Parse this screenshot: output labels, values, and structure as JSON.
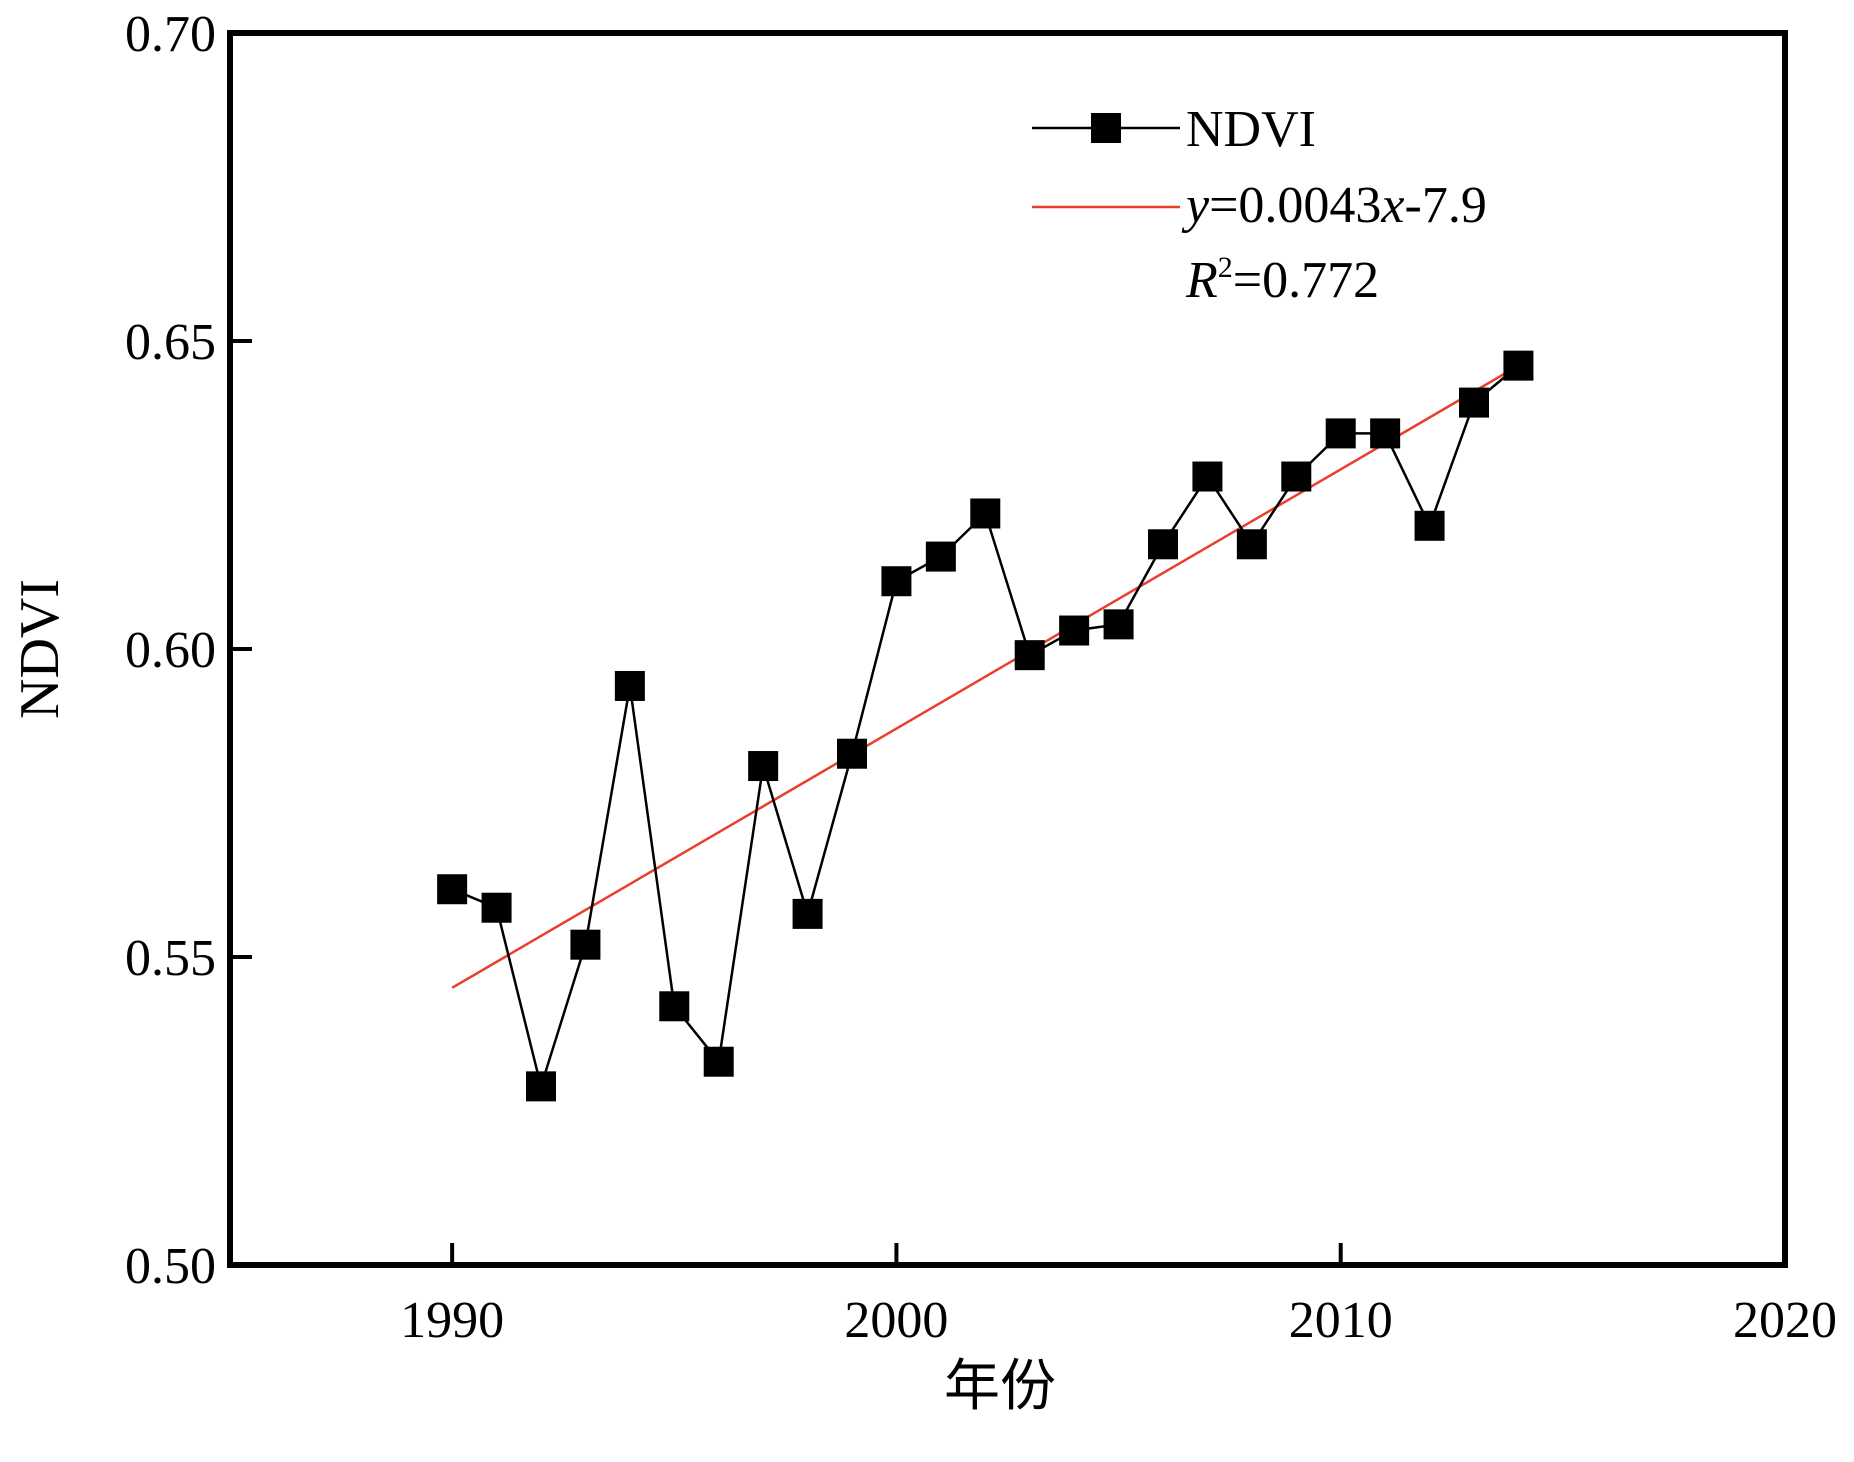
{
  "chart_data": {
    "type": "line",
    "xlabel": "年份",
    "ylabel": "NDVI",
    "xlim": [
      1985,
      2020
    ],
    "ylim": [
      0.5,
      0.7
    ],
    "xticks": [
      1990,
      2000,
      2010,
      2020
    ],
    "xtick_labels": [
      "1990",
      "2000",
      "2010",
      "2020"
    ],
    "yticks": [
      0.5,
      0.55,
      0.6,
      0.65,
      0.7
    ],
    "ytick_labels": [
      "0.50",
      "0.55",
      "0.60",
      "0.65",
      "0.70"
    ],
    "grid": false,
    "legend_position": "top-right",
    "series": [
      {
        "name": "NDVI",
        "color": "#000000",
        "marker": "square",
        "x": [
          1990,
          1991,
          1992,
          1993,
          1994,
          1995,
          1996,
          1997,
          1998,
          1999,
          2000,
          2001,
          2002,
          2003,
          2004,
          2005,
          2006,
          2007,
          2008,
          2009,
          2010,
          2011,
          2012,
          2013,
          2014
        ],
        "y": [
          0.561,
          0.558,
          0.529,
          0.552,
          0.594,
          0.542,
          0.533,
          0.581,
          0.557,
          0.583,
          0.611,
          0.615,
          0.622,
          0.599,
          0.603,
          0.604,
          0.617,
          0.628,
          0.617,
          0.628,
          0.635,
          0.635,
          0.62,
          0.64,
          0.646
        ]
      }
    ],
    "trend": {
      "color": "#e8402a",
      "x": [
        1990,
        2014
      ],
      "y": [
        0.545,
        0.646
      ]
    },
    "legend": {
      "series_label": "NDVI",
      "equation": {
        "y_var": "y",
        "eq_mid": "=0.0043",
        "x_var": "x",
        "eq_tail": "-7.9"
      },
      "r2": {
        "r_var": "R",
        "sup": "2",
        "value": "=0.772"
      }
    }
  }
}
